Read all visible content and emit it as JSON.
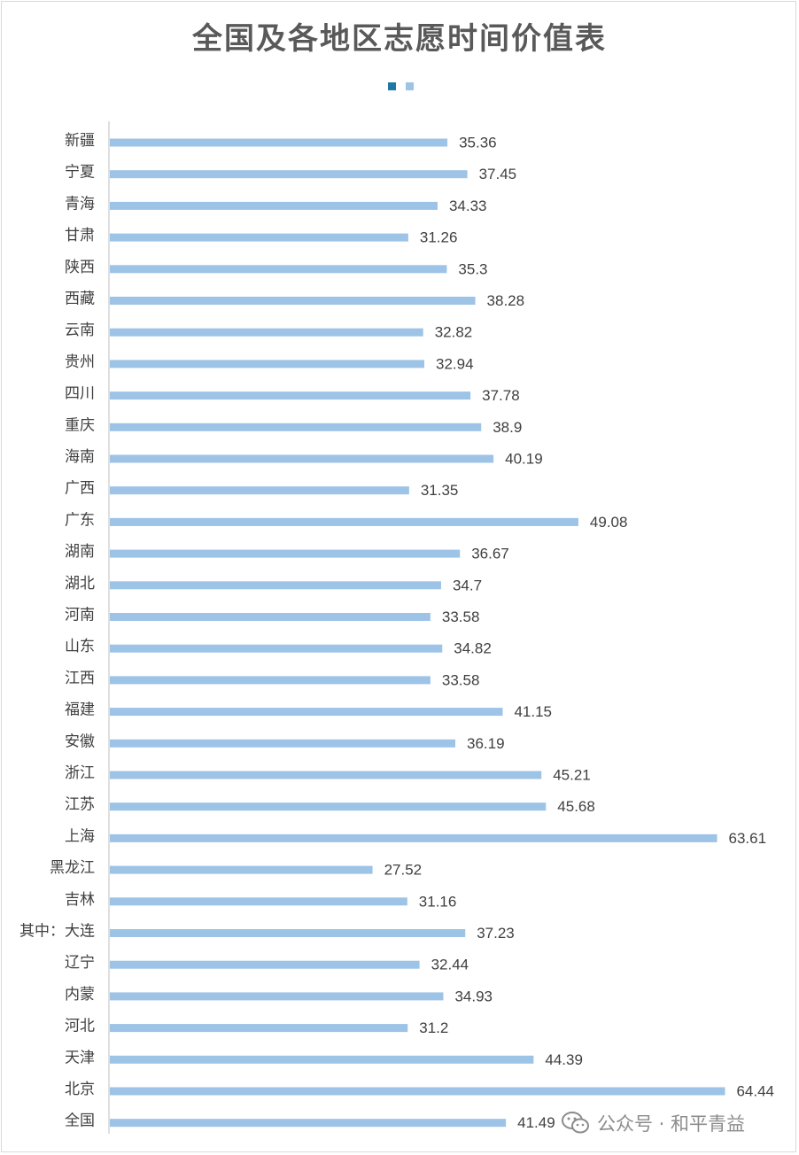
{
  "chart_data": {
    "type": "bar",
    "orientation": "horizontal",
    "title": "全国及各地区志愿时间价值表",
    "categories": [
      "新疆",
      "宁夏",
      "青海",
      "甘肃",
      "陕西",
      "西藏",
      "云南",
      "贵州",
      "四川",
      "重庆",
      "海南",
      "广西",
      "广东",
      "湖南",
      "湖北",
      "河南",
      "山东",
      "江西",
      "福建",
      "安徽",
      "浙江",
      "江苏",
      "上海",
      "黑龙江",
      "吉林",
      "其中：大连",
      "辽宁",
      "内蒙",
      "河北",
      "天津",
      "北京",
      "全国"
    ],
    "values": [
      35.36,
      37.45,
      34.33,
      31.26,
      35.3,
      38.28,
      32.82,
      32.94,
      37.78,
      38.9,
      40.19,
      31.35,
      49.08,
      36.67,
      34.7,
      33.58,
      34.82,
      33.58,
      41.15,
      36.19,
      45.21,
      45.68,
      63.61,
      27.52,
      31.16,
      37.23,
      32.44,
      34.93,
      31.2,
      44.39,
      64.44,
      41.49
    ],
    "value_labels": [
      "35.36",
      "37.45",
      "34.33",
      "31.26",
      "35.3",
      "38.28",
      "32.82",
      "32.94",
      "37.78",
      "38.9",
      "40.19",
      "31.35",
      "49.08",
      "36.67",
      "34.7",
      "33.58",
      "34.82",
      "33.58",
      "41.15",
      "36.19",
      "45.21",
      "45.68",
      "63.61",
      "27.52",
      "31.16",
      "37.23",
      "32.44",
      "34.93",
      "31.2",
      "44.39",
      "64.44",
      "41.49"
    ],
    "xlim": [
      0,
      70
    ],
    "grid": false,
    "legend": {
      "position": "top",
      "swatches": [
        "#1f77a4",
        "#9dc3e6"
      ]
    },
    "colors": {
      "bar": "#9dc3e6",
      "axis": "#bfbfbf"
    }
  },
  "watermark": {
    "text": "公众号 · 和平青益",
    "icon": "wechat-icon"
  }
}
